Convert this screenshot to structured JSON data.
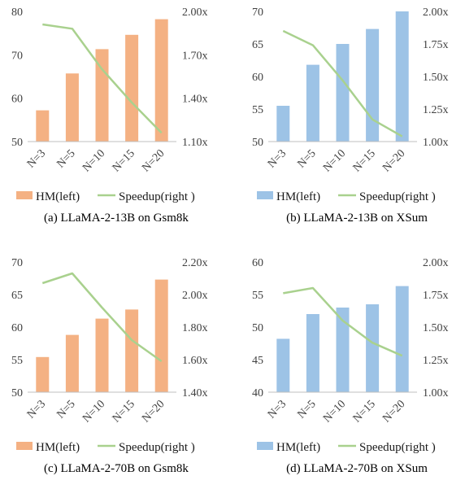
{
  "colors": {
    "orange": "#F4B183",
    "blue": "#9DC3E6",
    "green": "#A9D18E",
    "axis": "#BFBFBF",
    "text": "#404040"
  },
  "chart_data": [
    {
      "type": "bar",
      "caption": "(a) LLaMA-2-13B on Gsm8k",
      "categories": [
        "N=3",
        "N=5",
        "N=10",
        "N=15",
        "N=20"
      ],
      "bar_color": "#F4B183",
      "series": [
        {
          "name": "HM(left)",
          "type": "bar",
          "axis": "left",
          "values": [
            57.2,
            65.7,
            71.3,
            74.6,
            78.2
          ]
        },
        {
          "name": "Speedup(right )",
          "type": "line",
          "axis": "right",
          "values": [
            1.91,
            1.88,
            1.6,
            1.37,
            1.16
          ]
        }
      ],
      "ylim_left": [
        50,
        80
      ],
      "yticks_left": [
        "50",
        "60",
        "70",
        "80"
      ],
      "ylim_right": [
        1.1,
        2.0
      ],
      "yticks_right": [
        "1.10x",
        "1.40x",
        "1.70x",
        "2.00x"
      ]
    },
    {
      "type": "bar",
      "caption": "(b) LLaMA-2-13B on XSum",
      "categories": [
        "N=3",
        "N=5",
        "N=10",
        "N=15",
        "N=20"
      ],
      "bar_color": "#9DC3E6",
      "series": [
        {
          "name": "HM(left)",
          "type": "bar",
          "axis": "left",
          "values": [
            55.5,
            61.8,
            65.0,
            67.3,
            70.0
          ]
        },
        {
          "name": "Speedup(right )",
          "type": "line",
          "axis": "right",
          "values": [
            1.85,
            1.74,
            1.47,
            1.17,
            1.04
          ]
        }
      ],
      "ylim_left": [
        50,
        70
      ],
      "yticks_left": [
        "50",
        "55",
        "60",
        "65",
        "70"
      ],
      "ylim_right": [
        1.0,
        2.0
      ],
      "yticks_right": [
        "1.00x",
        "1.25x",
        "1.50x",
        "1.75x",
        "2.00x"
      ]
    },
    {
      "type": "bar",
      "caption": "(c) LLaMA-2-70B on Gsm8k",
      "categories": [
        "N=3",
        "N=5",
        "N=10",
        "N=15",
        "N=20"
      ],
      "bar_color": "#F4B183",
      "series": [
        {
          "name": "HM(left)",
          "type": "bar",
          "axis": "left",
          "values": [
            55.4,
            58.8,
            61.3,
            62.7,
            67.3
          ]
        },
        {
          "name": "Speedup(right )",
          "type": "line",
          "axis": "right",
          "values": [
            2.07,
            2.13,
            1.92,
            1.72,
            1.59
          ]
        }
      ],
      "ylim_left": [
        50,
        70
      ],
      "yticks_left": [
        "50",
        "55",
        "60",
        "65",
        "70"
      ],
      "ylim_right": [
        1.4,
        2.2
      ],
      "yticks_right": [
        "1.40x",
        "1.60x",
        "1.80x",
        "2.00x",
        "2.20x"
      ]
    },
    {
      "type": "bar",
      "caption": "(d) LLaMA-2-70B on XSum",
      "categories": [
        "N=3",
        "N=5",
        "N=10",
        "N=15",
        "N=20"
      ],
      "bar_color": "#9DC3E6",
      "series": [
        {
          "name": "HM(left)",
          "type": "bar",
          "axis": "left",
          "values": [
            48.2,
            52.0,
            53.0,
            53.5,
            56.3
          ]
        },
        {
          "name": "Speedup(right )",
          "type": "line",
          "axis": "right",
          "values": [
            1.76,
            1.8,
            1.55,
            1.38,
            1.28
          ]
        }
      ],
      "ylim_left": [
        40,
        60
      ],
      "yticks_left": [
        "40",
        "45",
        "50",
        "55",
        "60"
      ],
      "ylim_right": [
        1.0,
        2.0
      ],
      "yticks_right": [
        "1.00x",
        "1.25x",
        "1.50x",
        "1.75x",
        "2.00x"
      ]
    }
  ]
}
